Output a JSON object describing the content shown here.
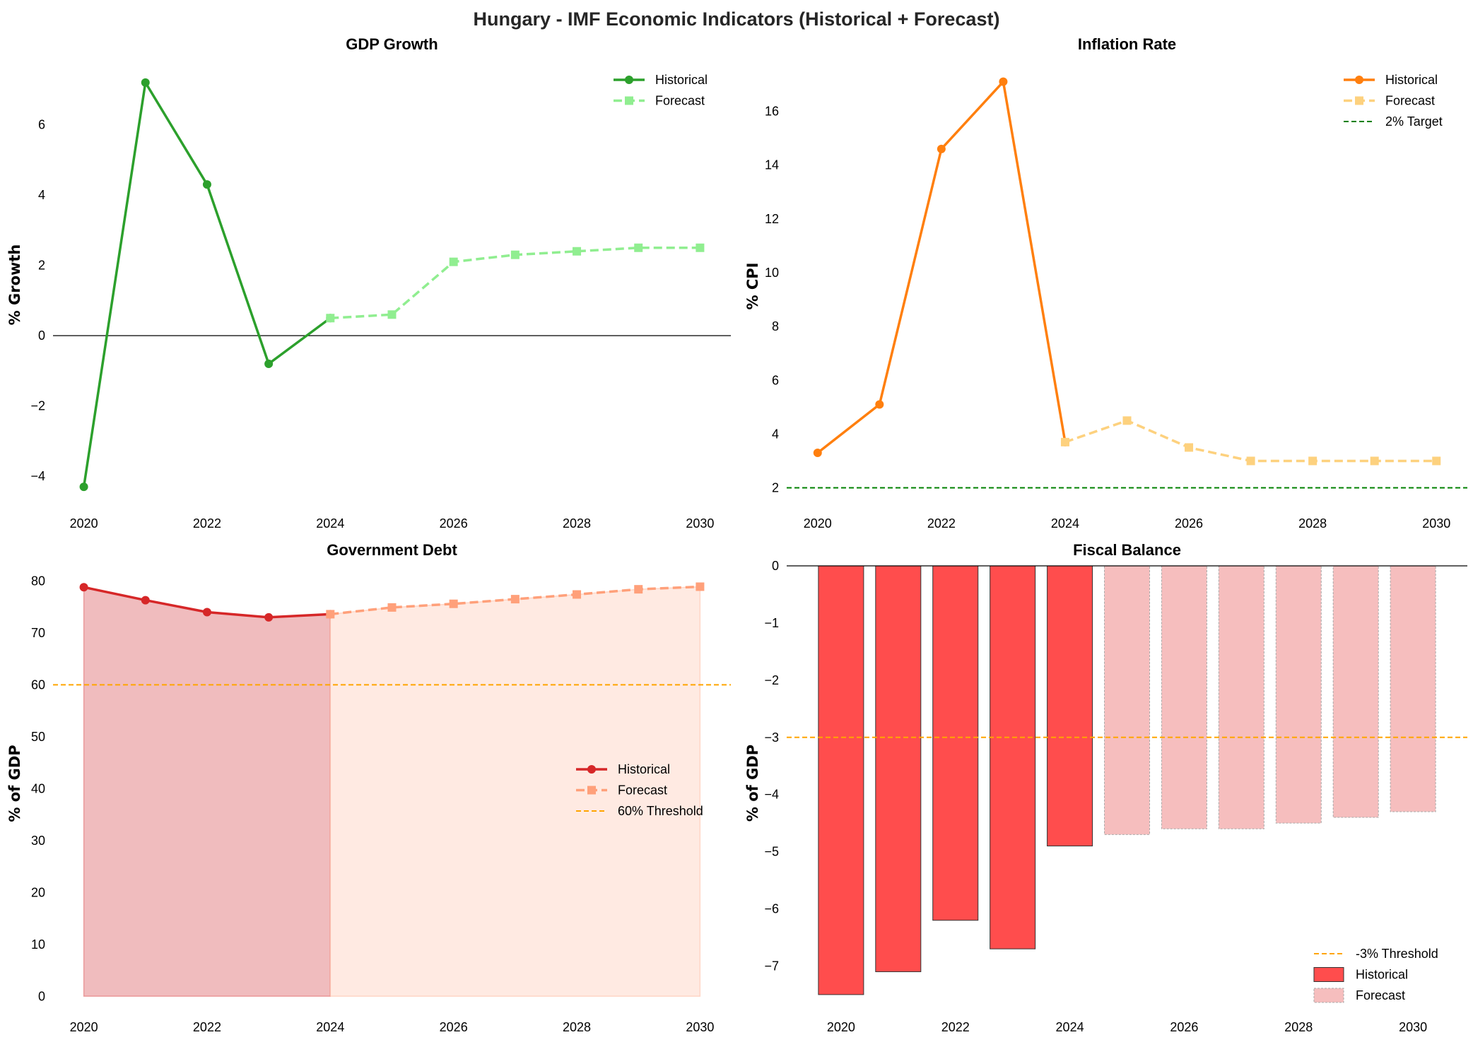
{
  "title": "Hungary - IMF Economic Indicators (Historical + Forecast)",
  "chart_data": [
    {
      "id": "gdp",
      "type": "line",
      "title": "GDP Growth",
      "ylabel": "% Growth",
      "xlim": [
        2019.5,
        2030.5
      ],
      "ylim": [
        -4.9,
        7.8
      ],
      "xticks": [
        2020,
        2022,
        2024,
        2026,
        2028,
        2030
      ],
      "yticks": [
        -4,
        -2,
        0,
        2,
        4,
        6
      ],
      "zero_line": true,
      "series": [
        {
          "name": "Historical",
          "style": "solid",
          "marker": "circle",
          "color": "#2ca02c",
          "x": [
            2020,
            2021,
            2022,
            2023,
            2024
          ],
          "y": [
            -4.3,
            7.2,
            4.3,
            -0.8,
            0.5
          ]
        },
        {
          "name": "Forecast",
          "style": "dashed",
          "marker": "square",
          "color": "#90ee90",
          "x": [
            2024,
            2025,
            2026,
            2027,
            2028,
            2029,
            2030
          ],
          "y": [
            0.5,
            0.6,
            2.1,
            2.3,
            2.4,
            2.5,
            2.5
          ]
        }
      ],
      "hlines": [],
      "legend": "top-right"
    },
    {
      "id": "inflation",
      "type": "line",
      "title": "Inflation Rate",
      "ylabel": "% CPI",
      "xlim": [
        2019.5,
        2030.5
      ],
      "ylim": [
        1.2,
        17.8
      ],
      "xticks": [
        2020,
        2022,
        2024,
        2026,
        2028,
        2030
      ],
      "yticks": [
        2,
        4,
        6,
        8,
        10,
        12,
        14,
        16
      ],
      "series": [
        {
          "name": "Historical",
          "style": "solid",
          "marker": "circle",
          "color": "#ff7f0e",
          "x": [
            2020,
            2021,
            2022,
            2023,
            2024
          ],
          "y": [
            3.3,
            5.1,
            14.6,
            17.1,
            3.7
          ]
        },
        {
          "name": "Forecast",
          "style": "dashed",
          "marker": "square",
          "color": "#fdd17e",
          "x": [
            2024,
            2025,
            2026,
            2027,
            2028,
            2029,
            2030
          ],
          "y": [
            3.7,
            4.5,
            3.5,
            3.0,
            3.0,
            3.0,
            3.0
          ]
        }
      ],
      "hlines": [
        {
          "name": "2% Target",
          "y": 2,
          "color": "#008000"
        }
      ],
      "legend": "top-right"
    },
    {
      "id": "debt",
      "type": "area",
      "title": "Government Debt",
      "ylabel": "% of GDP",
      "xlim": [
        2019.5,
        2030.5
      ],
      "ylim": [
        -2,
        84
      ],
      "xticks": [
        2020,
        2022,
        2024,
        2026,
        2028,
        2030
      ],
      "yticks": [
        0,
        10,
        20,
        30,
        40,
        50,
        60,
        70,
        80
      ],
      "series": [
        {
          "name": "Historical",
          "style": "solid",
          "marker": "circle",
          "color": "#d62728",
          "fill": "#f0bcbe",
          "x": [
            2020,
            2021,
            2022,
            2023,
            2024
          ],
          "y": [
            78.8,
            76.3,
            74.0,
            73.0,
            73.6
          ]
        },
        {
          "name": "Forecast",
          "style": "dashed",
          "marker": "square",
          "color": "#ffa07a",
          "fill": "#ffeae2",
          "x": [
            2024,
            2025,
            2026,
            2027,
            2028,
            2029,
            2030
          ],
          "y": [
            73.6,
            74.9,
            75.6,
            76.5,
            77.4,
            78.4,
            78.9
          ]
        }
      ],
      "hlines": [
        {
          "name": "60% Threshold",
          "y": 60,
          "color": "#ffa500"
        }
      ],
      "legend": "center-right"
    },
    {
      "id": "fiscal",
      "type": "bar",
      "title": "Fiscal Balance",
      "ylabel": "% of GDP",
      "xlim": [
        2019.05,
        2030.95
      ],
      "ylim": [
        -7.6,
        0
      ],
      "xticks": [
        2020,
        2022,
        2024,
        2026,
        2028,
        2030
      ],
      "yticks": [
        -7,
        -6,
        -5,
        -4,
        -3,
        -2,
        -1,
        0
      ],
      "zero_line": true,
      "series": [
        {
          "name": "Historical",
          "color": "#ff4d4d",
          "edge": "#333333",
          "x": [
            2020,
            2021,
            2022,
            2023,
            2024
          ],
          "y": [
            -7.5,
            -7.1,
            -6.2,
            -6.7,
            -4.9
          ]
        },
        {
          "name": "Forecast",
          "color": "#f6bebe",
          "edge": "#aaaaaa",
          "x": [
            2025,
            2026,
            2027,
            2028,
            2029,
            2030
          ],
          "y": [
            -4.7,
            -4.6,
            -4.6,
            -4.5,
            -4.4,
            -4.3
          ]
        }
      ],
      "hlines": [
        {
          "name": "-3% Threshold",
          "y": -3,
          "color": "#ffa500"
        }
      ],
      "legend": "bottom-right"
    }
  ]
}
